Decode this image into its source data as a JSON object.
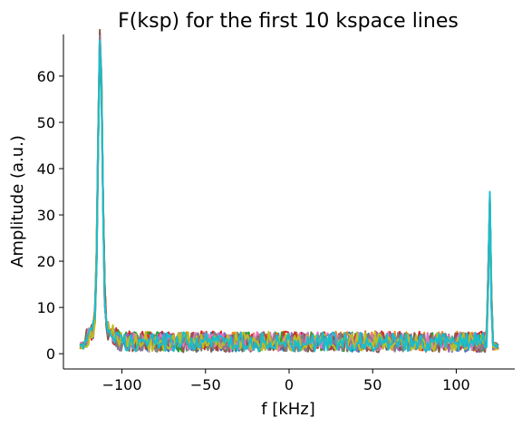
{
  "chart_data": {
    "type": "line",
    "title": "F(ksp) for the first 10 kspace lines",
    "xlabel": "f [kHz]",
    "ylabel": "Amplitude (a.u.)",
    "xlim": [
      -135,
      135
    ],
    "ylim": [
      -3.3,
      69
    ],
    "xticks": [
      -100,
      -50,
      0,
      50,
      100
    ],
    "yticks": [
      0,
      10,
      20,
      30,
      40,
      50,
      60
    ],
    "grid": false,
    "legend": "none",
    "x_range": [
      -125,
      125
    ],
    "peaks": [
      {
        "x": -113,
        "y": 65.5
      },
      {
        "x": 120,
        "y": 33.3
      }
    ],
    "series": [
      {
        "color": "#1f77b4",
        "peak_heights": [
          65.5,
          32.8
        ],
        "baseline_level": 2.5
      },
      {
        "color": "#ff7f0e",
        "peak_heights": [
          64.8,
          32.5
        ],
        "baseline_level": 2.7
      },
      {
        "color": "#2ca02c",
        "peak_heights": [
          64.2,
          32.9
        ],
        "baseline_level": 2.6
      },
      {
        "color": "#d62728",
        "peak_heights": [
          63.9,
          32.1
        ],
        "baseline_level": 2.8
      },
      {
        "color": "#9467bd",
        "peak_heights": [
          64.6,
          32.6
        ],
        "baseline_level": 2.5
      },
      {
        "color": "#8c564b",
        "peak_heights": [
          65.1,
          33.0
        ],
        "baseline_level": 2.4
      },
      {
        "color": "#e377c2",
        "peak_heights": [
          64.4,
          32.4
        ],
        "baseline_level": 2.6
      },
      {
        "color": "#7f7f7f",
        "peak_heights": [
          64.9,
          32.7
        ],
        "baseline_level": 2.5
      },
      {
        "color": "#bcbd22",
        "peak_heights": [
          64.0,
          32.2
        ],
        "baseline_level": 2.7
      },
      {
        "color": "#17becf",
        "peak_heights": [
          65.2,
          33.3
        ],
        "baseline_level": 2.6
      }
    ]
  }
}
